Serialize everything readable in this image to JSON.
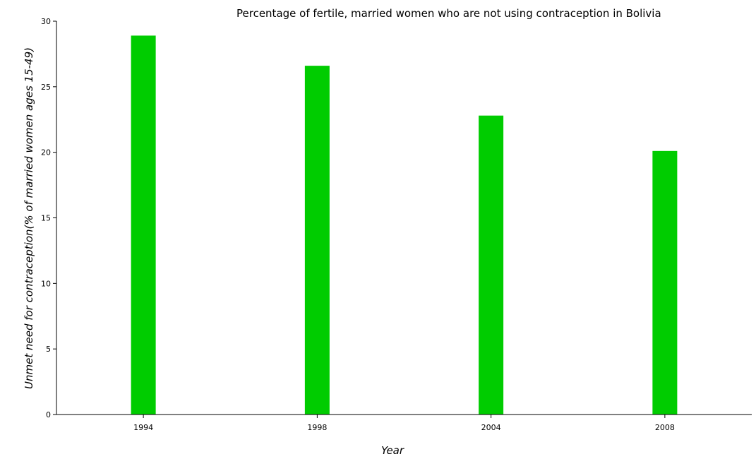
{
  "chart_data": {
    "type": "bar",
    "title": "Percentage of fertile, married women who are not using contraception in Bolivia",
    "xlabel": "Year",
    "ylabel": "Unmet need for contraception(% of married women ages 15-49)",
    "categories": [
      "1994",
      "1998",
      "2004",
      "2008"
    ],
    "values": [
      28.9,
      26.6,
      22.8,
      20.1
    ],
    "ylim": [
      0,
      30
    ],
    "yticks": [
      "0",
      "5",
      "10",
      "15",
      "20",
      "25",
      "30"
    ],
    "grid": false,
    "bar_color": "#00cc00"
  }
}
